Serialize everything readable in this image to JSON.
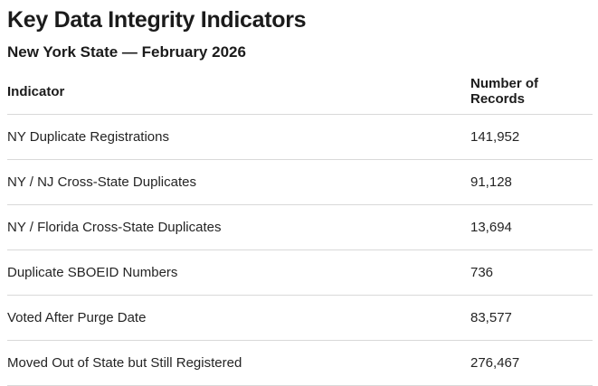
{
  "page": {
    "title": "Key Data Integrity Indicators",
    "subtitle": "New York State — February 2026"
  },
  "table": {
    "columns": [
      "Indicator",
      "Number of Records"
    ],
    "rows": [
      {
        "indicator": "NY Duplicate Registrations",
        "records": "141,952"
      },
      {
        "indicator": "NY / NJ Cross-State Duplicates",
        "records": "91,128"
      },
      {
        "indicator": "NY / Florida Cross-State Duplicates",
        "records": "13,694"
      },
      {
        "indicator": "Duplicate SBOEID Numbers",
        "records": "736"
      },
      {
        "indicator": "Voted After Purge Date",
        "records": "83,577"
      },
      {
        "indicator": "Moved Out of State but Still Registered",
        "records": "276,467"
      }
    ]
  },
  "colors": {
    "background": "#ffffff",
    "heading_text": "#1b1b1b",
    "body_text": "#242424",
    "divider": "#d9d9d9"
  }
}
